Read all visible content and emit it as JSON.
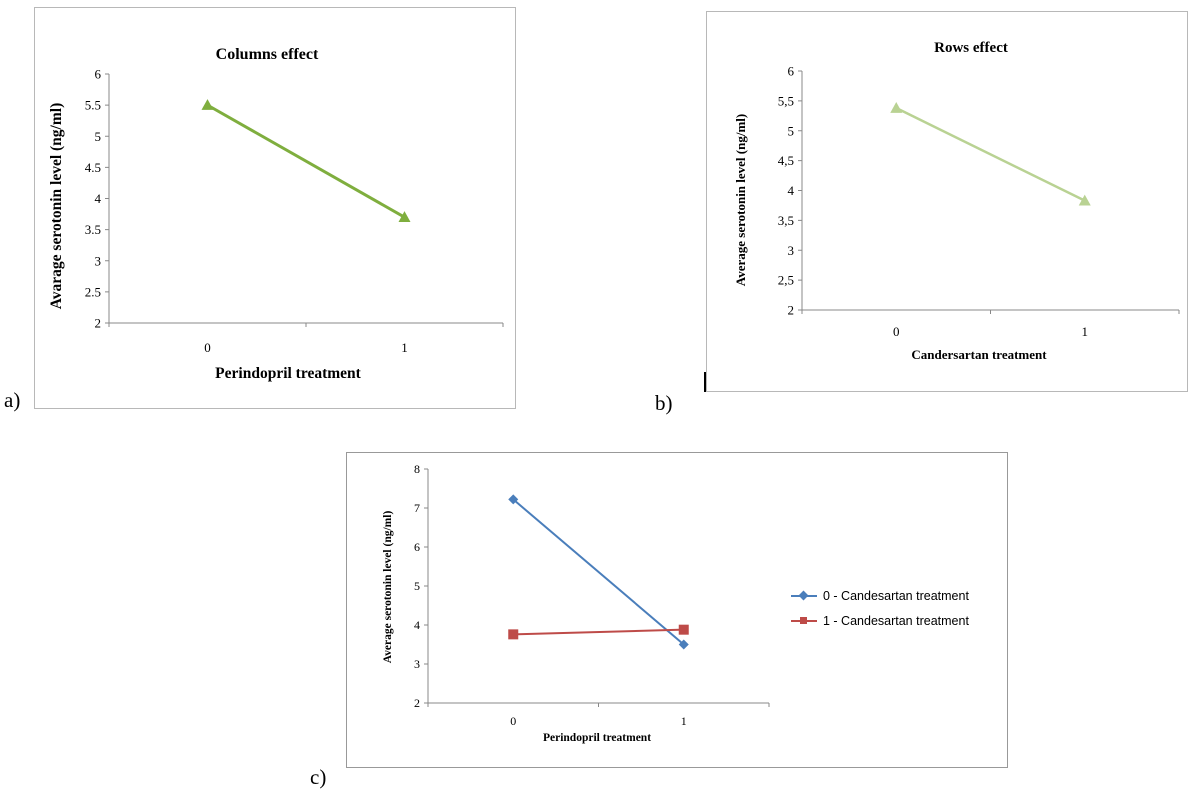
{
  "labels": {
    "a": "a)",
    "b": "b)",
    "c": "c)"
  },
  "chart_data": [
    {
      "type": "line",
      "title": "Columns effect",
      "xlabel": "Perindopril treatment",
      "ylabel": "Avarage serotonin level (ng/ml)",
      "categories": [
        "0",
        "1"
      ],
      "ylim": [
        2,
        6
      ],
      "yticks": [
        "2",
        "2.5",
        "3",
        "3.5",
        "4",
        "4.5",
        "5",
        "5.5",
        "6"
      ],
      "grid": false,
      "series": [
        {
          "values": [
            5.5,
            3.7
          ],
          "color": "#7fae3e",
          "marker": "triangle"
        }
      ]
    },
    {
      "type": "line",
      "title": "Rows effect",
      "xlabel": "Candersartan treatment",
      "ylabel": "Average serotonin level (ng/ml)",
      "categories": [
        "0",
        "1"
      ],
      "ylim": [
        2,
        6
      ],
      "yticks": [
        "2",
        "2,5",
        "3",
        "3,5",
        "4",
        "4,5",
        "5",
        "5,5",
        "6"
      ],
      "grid": false,
      "series": [
        {
          "values": [
            5.38,
            3.83
          ],
          "color": "#b9d293",
          "marker": "triangle"
        }
      ]
    },
    {
      "type": "line",
      "title": "",
      "xlabel": "Perindopril treatment",
      "ylabel": "Average serotonin level (ng/ml)",
      "categories": [
        "0",
        "1"
      ],
      "ylim": [
        2,
        8
      ],
      "yticks": [
        "2",
        "3",
        "4",
        "5",
        "6",
        "7",
        "8"
      ],
      "grid": false,
      "legend": "right",
      "series": [
        {
          "name": "0 - Candesartan treatment",
          "values": [
            7.22,
            3.5
          ],
          "color": "#4a7ebb",
          "marker": "diamond"
        },
        {
          "name": "1 - Candesartan treatment",
          "values": [
            3.76,
            3.88
          ],
          "color": "#be4b48",
          "marker": "square"
        }
      ]
    }
  ]
}
